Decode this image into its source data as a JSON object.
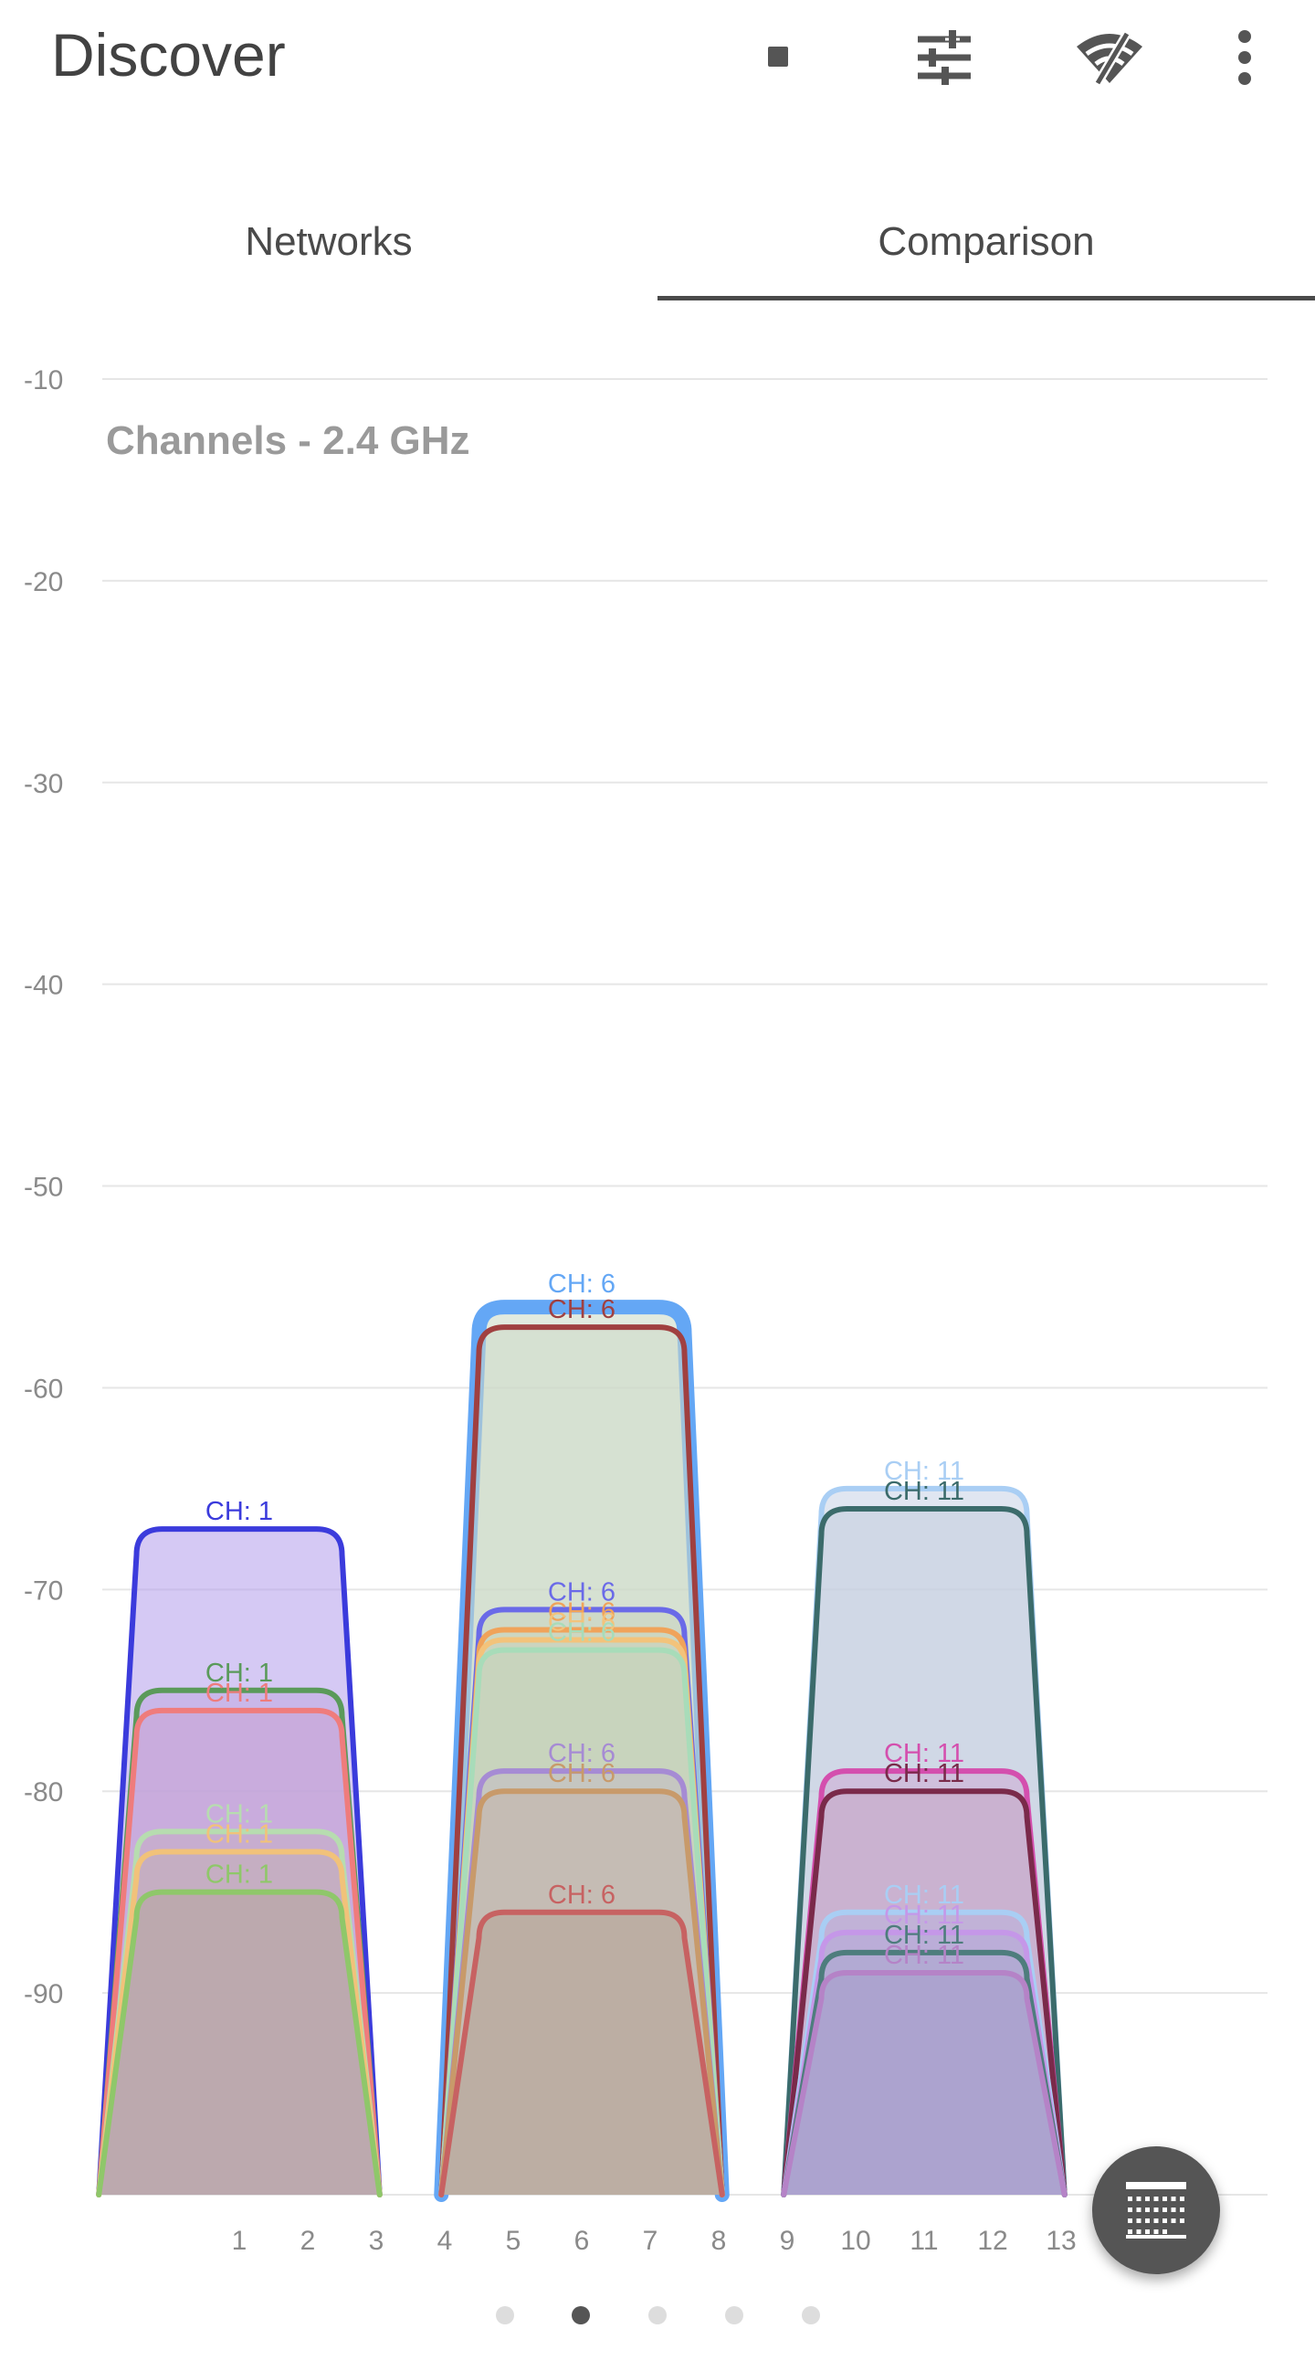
{
  "app_bar": {
    "title": "Discover",
    "icons": [
      "stop-icon",
      "sliders-icon",
      "wifi-off-icon",
      "more-vert-icon"
    ]
  },
  "tabs": [
    {
      "label": "Networks",
      "selected": false
    },
    {
      "label": "Comparison",
      "selected": true
    }
  ],
  "chart_data": {
    "type": "area",
    "title": "Channels - 2.4 GHz",
    "xlabel": "",
    "ylabel": "",
    "ylim": [
      -100,
      -10
    ],
    "yticks": [
      -10,
      -20,
      -30,
      -40,
      -50,
      -60,
      -70,
      -80,
      -90
    ],
    "xticks": [
      1,
      2,
      3,
      4,
      5,
      6,
      7,
      8,
      9,
      10,
      11,
      12,
      13
    ],
    "xlim": [
      -1,
      15
    ],
    "grid": true,
    "series": [
      {
        "channel": 1,
        "label": "CH: 1",
        "signal": -67,
        "color": "#3b3bdc",
        "fill": "#b39ceb"
      },
      {
        "channel": 1,
        "label": "CH: 1",
        "signal": -75,
        "color": "#5a9a5a",
        "fill": "#bfa8e0"
      },
      {
        "channel": 1,
        "label": "CH: 1",
        "signal": -76,
        "color": "#ef7c7c",
        "fill": "#c8a4d4"
      },
      {
        "channel": 1,
        "label": "CH: 1",
        "signal": -82,
        "color": "#b7dcb0",
        "fill": "#c4aec2"
      },
      {
        "channel": 1,
        "label": "CH: 1",
        "signal": -83,
        "color": "#f1c27a",
        "fill": "#c2aeb8"
      },
      {
        "channel": 1,
        "label": "CH: 1",
        "signal": -85,
        "color": "#8fc76a",
        "fill": "#b4a69e"
      },
      {
        "channel": 6,
        "label": "CH: 6",
        "signal": -56,
        "color": "#64a7f5",
        "fill": "#c8d8c4"
      },
      {
        "channel": 6,
        "label": "CH: 6",
        "signal": -57,
        "color": "#a04040",
        "fill": "#cdd9c6"
      },
      {
        "channel": 6,
        "label": "CH: 6",
        "signal": -71,
        "color": "#6a6ae8",
        "fill": "#c9d4c0"
      },
      {
        "channel": 6,
        "label": "CH: 6",
        "signal": -72,
        "color": "#f0a35a",
        "fill": "#cbd3bc"
      },
      {
        "channel": 6,
        "label": "CH: 6",
        "signal": -72.5,
        "color": "#f3c37b",
        "fill": "#cbd4bd"
      },
      {
        "channel": 6,
        "label": "CH: 6",
        "signal": -73,
        "color": "#a8dcb9",
        "fill": "#c6d3bb"
      },
      {
        "channel": 6,
        "label": "CH: 6",
        "signal": -79,
        "color": "#a68bd4",
        "fill": "#c2b9c4"
      },
      {
        "channel": 6,
        "label": "CH: 6",
        "signal": -80,
        "color": "#c89a6a",
        "fill": "#c4b4aa"
      },
      {
        "channel": 6,
        "label": "CH: 6",
        "signal": -86,
        "color": "#c76262",
        "fill": "#b5a296"
      },
      {
        "channel": 11,
        "label": "CH: 11",
        "signal": -65,
        "color": "#a9cef4",
        "fill": "#c6d1e6"
      },
      {
        "channel": 11,
        "label": "CH: 11",
        "signal": -66,
        "color": "#3b6b6b",
        "fill": "#c2ccdc"
      },
      {
        "channel": 11,
        "label": "CH: 11",
        "signal": -79,
        "color": "#d44fae",
        "fill": "#cdacd4"
      },
      {
        "channel": 11,
        "label": "CH: 11",
        "signal": -80,
        "color": "#7a2a4a",
        "fill": "#c6a8c6"
      },
      {
        "channel": 11,
        "label": "CH: 11",
        "signal": -86,
        "color": "#a9cef4",
        "fill": "#b9b3dc"
      },
      {
        "channel": 11,
        "label": "CH: 11",
        "signal": -87,
        "color": "#c597e8",
        "fill": "#b6a9d8"
      },
      {
        "channel": 11,
        "label": "CH: 11",
        "signal": -88,
        "color": "#4e7d7d",
        "fill": "#aca7d0"
      },
      {
        "channel": 11,
        "label": "CH: 11",
        "signal": -89,
        "color": "#b583c7",
        "fill": "#a79ccc"
      }
    ]
  },
  "pager": {
    "count": 5,
    "active": 1
  },
  "fab": {
    "icon": "calendar-grid-icon"
  }
}
